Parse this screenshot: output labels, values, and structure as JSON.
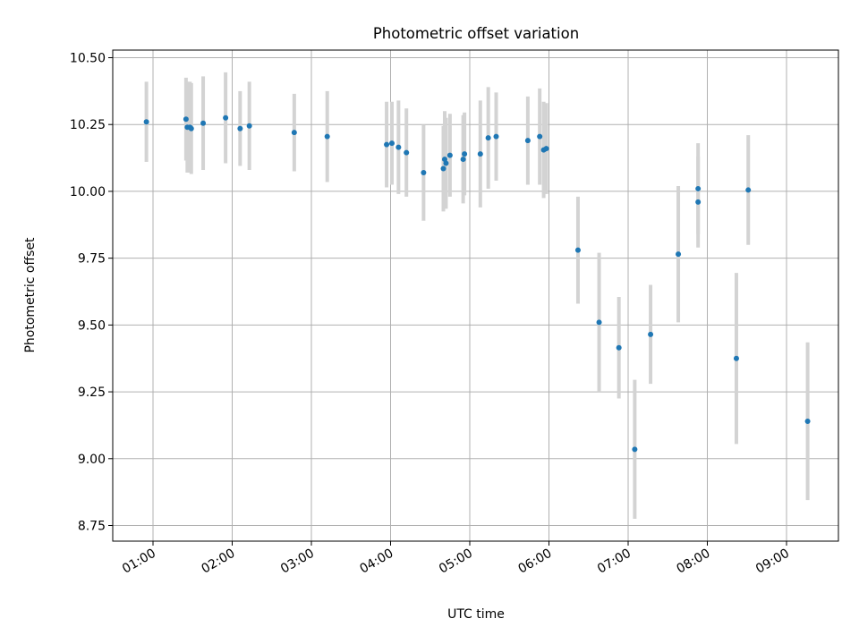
{
  "chart_data": {
    "type": "scatter",
    "title": "Photometric offset variation",
    "xlabel": "UTC time",
    "ylabel": "Photometric offset",
    "xlim_hours": [
      0.5,
      9.65
    ],
    "ylim": [
      8.69,
      10.53
    ],
    "grid": true,
    "x_ticks": [
      {
        "label": "01:00",
        "hour": 1
      },
      {
        "label": "02:00",
        "hour": 2
      },
      {
        "label": "03:00",
        "hour": 3
      },
      {
        "label": "04:00",
        "hour": 4
      },
      {
        "label": "05:00",
        "hour": 5
      },
      {
        "label": "06:00",
        "hour": 6
      },
      {
        "label": "07:00",
        "hour": 7
      },
      {
        "label": "08:00",
        "hour": 8
      },
      {
        "label": "09:00",
        "hour": 9
      }
    ],
    "y_ticks": [
      {
        "label": "8.75",
        "value": 8.75
      },
      {
        "label": "9.00",
        "value": 9.0
      },
      {
        "label": "9.25",
        "value": 9.25
      },
      {
        "label": "9.50",
        "value": 9.5
      },
      {
        "label": "9.75",
        "value": 9.75
      },
      {
        "label": "10.00",
        "value": 10.0
      },
      {
        "label": "10.25",
        "value": 10.25
      },
      {
        "label": "10.50",
        "value": 10.5
      }
    ],
    "colors": {
      "points": "#1f77b4",
      "errorbars": "#d3d3d3",
      "grid": "#b0b0b0"
    },
    "points": [
      {
        "time": "00:55",
        "y": 10.26,
        "err": 0.15
      },
      {
        "time": "01:25",
        "y": 10.27,
        "err": 0.155
      },
      {
        "time": "01:26",
        "y": 10.24,
        "err": 0.17
      },
      {
        "time": "01:28",
        "y": 10.24,
        "err": 0.17
      },
      {
        "time": "01:29",
        "y": 10.235,
        "err": 0.17
      },
      {
        "time": "01:38",
        "y": 10.255,
        "err": 0.175
      },
      {
        "time": "01:55",
        "y": 10.275,
        "err": 0.17
      },
      {
        "time": "02:06",
        "y": 10.235,
        "err": 0.14
      },
      {
        "time": "02:13",
        "y": 10.245,
        "err": 0.165
      },
      {
        "time": "02:47",
        "y": 10.22,
        "err": 0.145
      },
      {
        "time": "03:12",
        "y": 10.205,
        "err": 0.17
      },
      {
        "time": "03:57",
        "y": 10.175,
        "err": 0.16
      },
      {
        "time": "04:01",
        "y": 10.18,
        "err": 0.155
      },
      {
        "time": "04:06",
        "y": 10.165,
        "err": 0.175
      },
      {
        "time": "04:12",
        "y": 10.145,
        "err": 0.165
      },
      {
        "time": "04:25",
        "y": 10.07,
        "err": 0.18
      },
      {
        "time": "04:40",
        "y": 10.085,
        "err": 0.16
      },
      {
        "time": "04:41",
        "y": 10.12,
        "err": 0.18
      },
      {
        "time": "04:42",
        "y": 10.105,
        "err": 0.17
      },
      {
        "time": "04:45",
        "y": 10.135,
        "err": 0.155
      },
      {
        "time": "04:55",
        "y": 10.12,
        "err": 0.165
      },
      {
        "time": "04:56",
        "y": 10.14,
        "err": 0.155
      },
      {
        "time": "05:08",
        "y": 10.14,
        "err": 0.2
      },
      {
        "time": "05:14",
        "y": 10.2,
        "err": 0.19
      },
      {
        "time": "05:20",
        "y": 10.205,
        "err": 0.165
      },
      {
        "time": "05:44",
        "y": 10.19,
        "err": 0.165
      },
      {
        "time": "05:53",
        "y": 10.205,
        "err": 0.18
      },
      {
        "time": "05:56",
        "y": 10.155,
        "err": 0.18
      },
      {
        "time": "05:58",
        "y": 10.16,
        "err": 0.17
      },
      {
        "time": "06:22",
        "y": 9.78,
        "err": 0.2
      },
      {
        "time": "06:38",
        "y": 9.51,
        "err": 0.26
      },
      {
        "time": "06:53",
        "y": 9.415,
        "err": 0.19
      },
      {
        "time": "07:05",
        "y": 9.035,
        "err": 0.26
      },
      {
        "time": "07:17",
        "y": 9.465,
        "err": 0.185
      },
      {
        "time": "07:38",
        "y": 9.765,
        "err": 0.255
      },
      {
        "time": "07:53",
        "y": 10.01,
        "err": 0.17
      },
      {
        "time": "07:53",
        "y": 9.96,
        "err": 0.17
      },
      {
        "time": "08:22",
        "y": 9.375,
        "err": 0.32
      },
      {
        "time": "08:31",
        "y": 10.005,
        "err": 0.205
      },
      {
        "time": "09:16",
        "y": 9.14,
        "err": 0.295
      }
    ]
  }
}
